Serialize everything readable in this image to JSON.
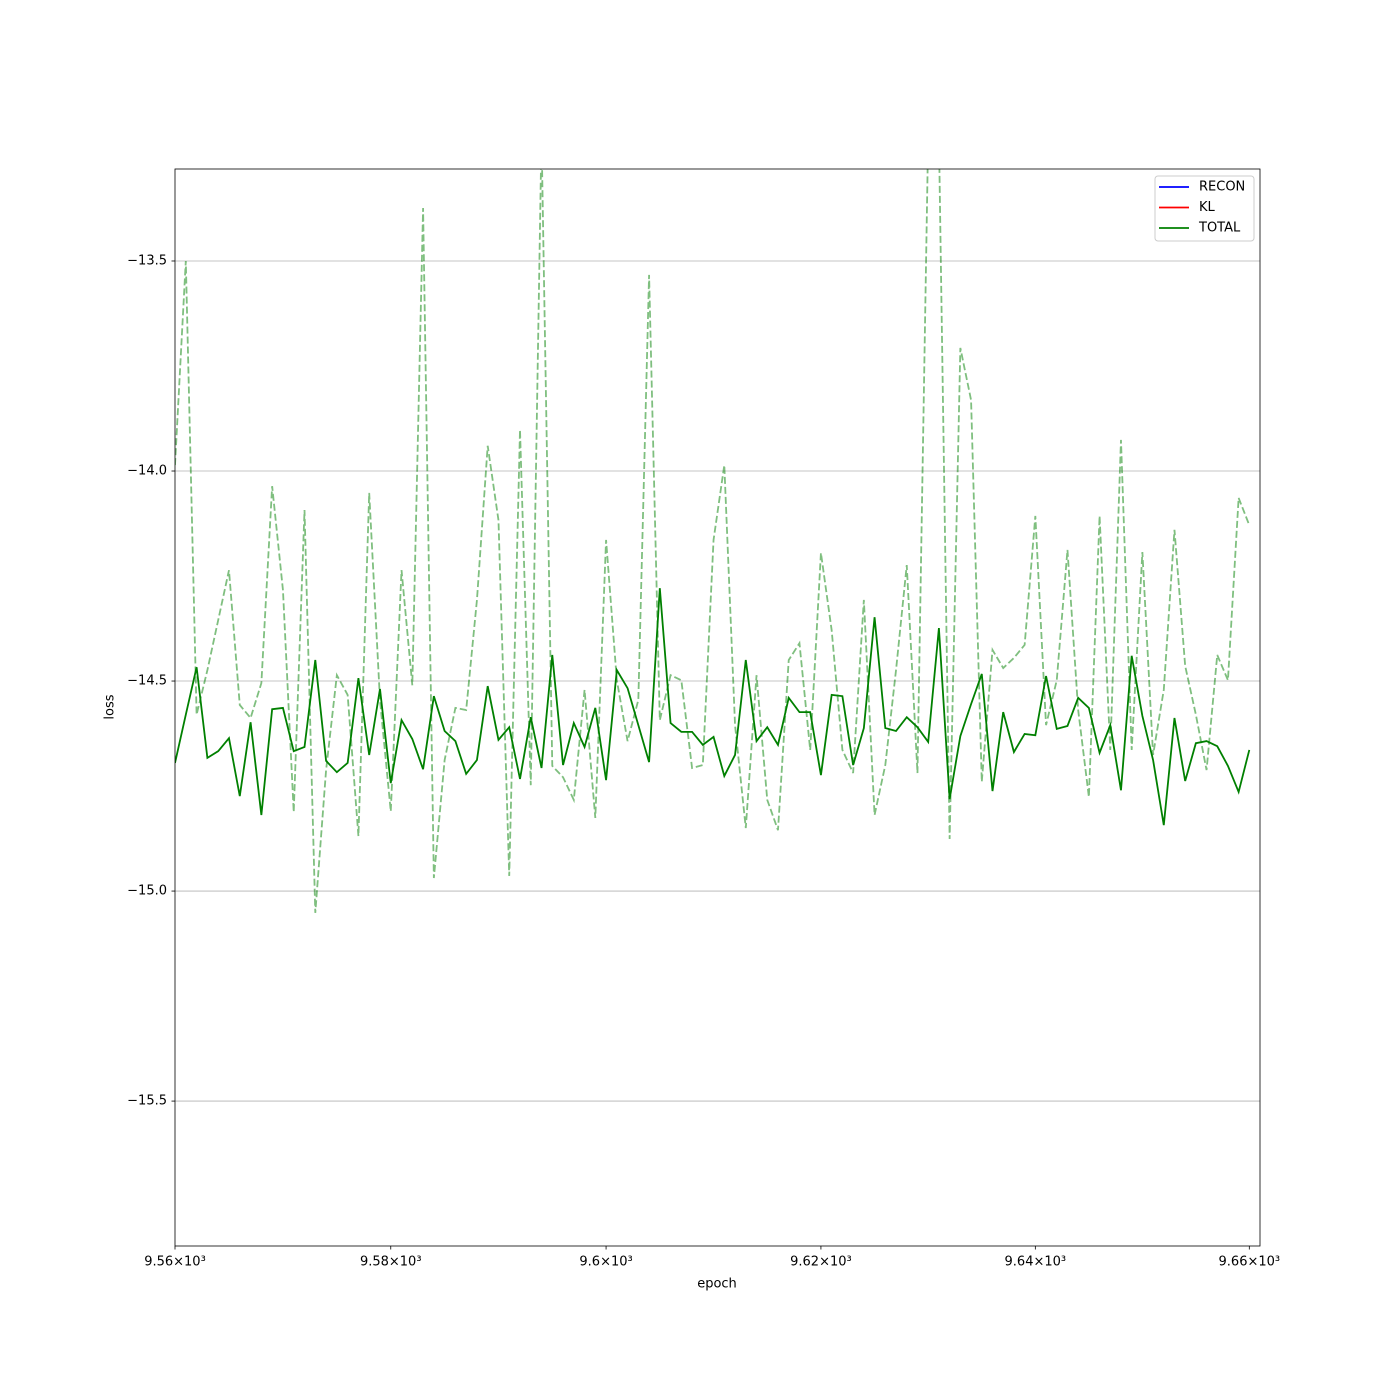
{
  "chart_data": {
    "type": "line",
    "xlabel": "epoch",
    "ylabel": "loss",
    "xscale": "log",
    "xlim": [
      9560,
      9661
    ],
    "ylim": [
      -15.845,
      -13.281
    ],
    "xticks": [
      {
        "value": 9560,
        "label": "9.56×10³"
      },
      {
        "value": 9580,
        "label": "9.58×10³"
      },
      {
        "value": 9600,
        "label": "9.6×10³"
      },
      {
        "value": 9620,
        "label": "9.62×10³"
      },
      {
        "value": 9640,
        "label": "9.64×10³"
      },
      {
        "value": 9660,
        "label": "9.66×10³"
      }
    ],
    "yticks": [
      {
        "value": -13.5,
        "label": "−13.5"
      },
      {
        "value": -14.0,
        "label": "−14.0"
      },
      {
        "value": -14.5,
        "label": "−14.5"
      },
      {
        "value": -15.0,
        "label": "−15.0"
      },
      {
        "value": -15.5,
        "label": "−15.5"
      }
    ],
    "grid": "y",
    "legend": {
      "loc": "upper right",
      "entries": [
        {
          "name": "RECON",
          "color": "blue"
        },
        {
          "name": "KL",
          "color": "red"
        },
        {
          "name": "TOTAL",
          "color": "green"
        }
      ]
    },
    "x": [
      9560,
      9561,
      9562,
      9563,
      9564,
      9565,
      9566,
      9567,
      9568,
      9569,
      9570,
      9571,
      9572,
      9573,
      9574,
      9575,
      9576,
      9577,
      9578,
      9579,
      9580,
      9581,
      9582,
      9583,
      9584,
      9585,
      9586,
      9587,
      9588,
      9589,
      9590,
      9591,
      9592,
      9593,
      9594,
      9595,
      9596,
      9597,
      9598,
      9599,
      9600,
      9601,
      9602,
      9603,
      9604,
      9605,
      9606,
      9607,
      9608,
      9609,
      9610,
      9611,
      9612,
      9613,
      9614,
      9615,
      9616,
      9617,
      9618,
      9619,
      9620,
      9621,
      9622,
      9623,
      9624,
      9625,
      9626,
      9627,
      9628,
      9629,
      9630,
      9631,
      9632,
      9633,
      9634,
      9635,
      9636,
      9637,
      9638,
      9639,
      9640,
      9641,
      9642,
      9643,
      9644,
      9645,
      9646,
      9647,
      9648,
      9649,
      9650,
      9651,
      9652,
      9653,
      9654,
      9655,
      9656,
      9657,
      9658,
      9659,
      9660
    ],
    "series": [
      {
        "color": "green",
        "alpha": 1,
        "linestyle": "solid",
        "values": [
          -14.695,
          -14.58,
          -14.467,
          -14.683,
          -14.667,
          -14.636,
          -14.774,
          -14.598,
          -14.819,
          -14.567,
          -14.564,
          -14.667,
          -14.657,
          -14.45,
          -14.69,
          -14.717,
          -14.695,
          -14.493,
          -14.676,
          -14.519,
          -14.743,
          -14.593,
          -14.638,
          -14.71,
          -14.536,
          -14.619,
          -14.643,
          -14.721,
          -14.688,
          -14.512,
          -14.64,
          -14.61,
          -14.733,
          -14.586,
          -14.707,
          -14.438,
          -14.7,
          -14.6,
          -14.657,
          -14.564,
          -14.736,
          -14.474,
          -14.517,
          -14.605,
          -14.693,
          -14.279,
          -14.6,
          -14.621,
          -14.621,
          -14.652,
          -14.633,
          -14.726,
          -14.676,
          -14.45,
          -14.643,
          -14.61,
          -14.652,
          -14.54,
          -14.574,
          -14.574,
          -14.724,
          -14.533,
          -14.536,
          -14.7,
          -14.612,
          -14.348,
          -14.612,
          -14.619,
          -14.586,
          -14.61,
          -14.645,
          -14.374,
          -14.781,
          -14.631,
          -14.555,
          -14.483,
          -14.762,
          -14.574,
          -14.669,
          -14.626,
          -14.629,
          -14.488,
          -14.614,
          -14.607,
          -14.54,
          -14.564,
          -14.671,
          -14.605,
          -14.76,
          -14.44,
          -14.583,
          -14.688,
          -14.843,
          -14.588,
          -14.738,
          -14.648,
          -14.643,
          -14.655,
          -14.702,
          -14.764,
          -14.664
        ]
      },
      {
        "color": "green",
        "alpha": 0.5,
        "linestyle": "dashed",
        "values": [
          -13.986,
          -13.5,
          -14.58,
          -14.474,
          -14.355,
          -14.236,
          -14.557,
          -14.588,
          -14.505,
          -14.036,
          -14.283,
          -14.812,
          -14.093,
          -15.052,
          -14.712,
          -14.486,
          -14.533,
          -14.869,
          -14.052,
          -14.545,
          -14.81,
          -14.236,
          -14.51,
          -13.374,
          -14.969,
          -14.688,
          -14.564,
          -14.569,
          -14.307,
          -13.94,
          -14.117,
          -14.964,
          -13.902,
          -14.748,
          -13.2,
          -14.702,
          -14.729,
          -14.783,
          -14.521,
          -14.826,
          -14.164,
          -14.498,
          -14.643,
          -14.545,
          -13.533,
          -14.593,
          -14.486,
          -14.498,
          -14.707,
          -14.7,
          -14.164,
          -13.986,
          -14.605,
          -14.85,
          -14.486,
          -14.783,
          -14.855,
          -14.45,
          -14.41,
          -14.664,
          -14.195,
          -14.379,
          -14.664,
          -14.719,
          -14.307,
          -14.819,
          -14.7,
          -14.474,
          -14.224,
          -14.719,
          -13.2,
          -13.2,
          -14.876,
          -13.707,
          -13.831,
          -14.74,
          -14.426,
          -14.469,
          -14.445,
          -14.414,
          -14.107,
          -14.605,
          -14.498,
          -14.188,
          -14.569,
          -14.776,
          -14.107,
          -14.664,
          -13.926,
          -14.664,
          -14.193,
          -14.676,
          -14.521,
          -14.14,
          -14.464,
          -14.58,
          -14.712,
          -14.438,
          -14.498,
          -14.064,
          -14.129
        ]
      }
    ]
  }
}
